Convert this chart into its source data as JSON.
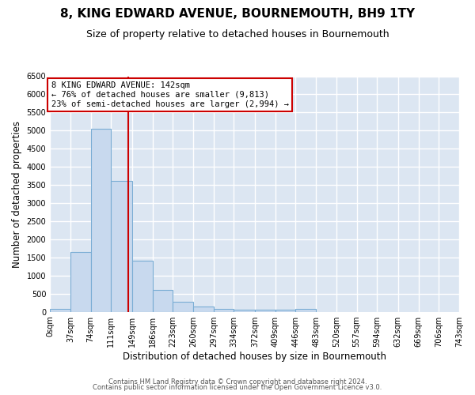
{
  "title": "8, KING EDWARD AVENUE, BOURNEMOUTH, BH9 1TY",
  "subtitle": "Size of property relative to detached houses in Bournemouth",
  "xlabel": "Distribution of detached houses by size in Bournemouth",
  "ylabel": "Number of detached properties",
  "bin_edges": [
    0,
    37,
    74,
    111,
    149,
    186,
    223,
    260,
    297,
    334,
    372,
    409,
    446,
    483,
    520,
    557,
    594,
    632,
    669,
    706,
    743
  ],
  "bin_labels": [
    "0sqm",
    "37sqm",
    "74sqm",
    "111sqm",
    "149sqm",
    "186sqm",
    "223sqm",
    "260sqm",
    "297sqm",
    "334sqm",
    "372sqm",
    "409sqm",
    "446sqm",
    "483sqm",
    "520sqm",
    "557sqm",
    "594sqm",
    "632sqm",
    "669sqm",
    "706sqm",
    "743sqm"
  ],
  "bar_heights": [
    75,
    1650,
    5050,
    3600,
    1400,
    600,
    280,
    150,
    75,
    50,
    50,
    50,
    75,
    0,
    0,
    0,
    0,
    0,
    0,
    0
  ],
  "bar_color": "#c8d9ee",
  "bar_edge_color": "#7aadd4",
  "vline_x": 142,
  "vline_color": "#cc0000",
  "annotation_box_text": "8 KING EDWARD AVENUE: 142sqm\n← 76% of detached houses are smaller (9,813)\n23% of semi-detached houses are larger (2,994) →",
  "annotation_box_color": "#cc0000",
  "ylim": [
    0,
    6500
  ],
  "background_color": "#dce6f2",
  "grid_color": "#ffffff",
  "title_fontsize": 11,
  "subtitle_fontsize": 9,
  "axis_label_fontsize": 8.5,
  "tick_fontsize": 7,
  "annot_fontsize": 7.5,
  "footer_line1": "Contains HM Land Registry data © Crown copyright and database right 2024.",
  "footer_line2": "Contains public sector information licensed under the Open Government Licence v3.0.",
  "footer_fontsize": 6.0
}
